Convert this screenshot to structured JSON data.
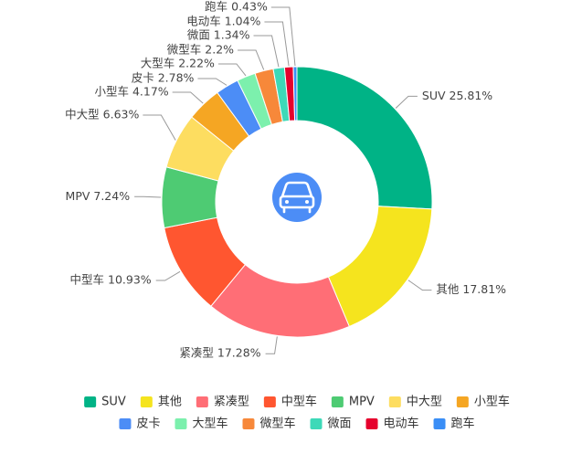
{
  "chart_data": {
    "type": "pie",
    "style": "donut",
    "center_icon": "car-icon",
    "legend_position": "bottom",
    "slices": [
      {
        "name": "SUV",
        "value": 25.81,
        "label": "SUV 25.81%",
        "color": "#00b386"
      },
      {
        "name": "其他",
        "value": 17.81,
        "label": "其他 17.81%",
        "color": "#f5e41e"
      },
      {
        "name": "紧凑型",
        "value": 17.28,
        "label": "紧凑型 17.28%",
        "color": "#ff6e76"
      },
      {
        "name": "中型车",
        "value": 10.93,
        "label": "中型车 10.93%",
        "color": "#ff5630"
      },
      {
        "name": "MPV",
        "value": 7.24,
        "label": "MPV 7.24%",
        "color": "#4ecb73"
      },
      {
        "name": "中大型",
        "value": 6.63,
        "label": "中大型 6.63%",
        "color": "#fddd60"
      },
      {
        "name": "小型车",
        "value": 4.17,
        "label": "小型车 4.17%",
        "color": "#f5a623"
      },
      {
        "name": "皮卡",
        "value": 2.78,
        "label": "皮卡 2.78%",
        "color": "#4c8df6"
      },
      {
        "name": "大型车",
        "value": 2.22,
        "label": "大型车 2.22%",
        "color": "#7cf0ad"
      },
      {
        "name": "微型车",
        "value": 2.2,
        "label": "微型车 2.2%",
        "color": "#f7883a"
      },
      {
        "name": "微面",
        "value": 1.34,
        "label": "微面 1.34%",
        "color": "#3dd9b8"
      },
      {
        "name": "电动车",
        "value": 1.04,
        "label": "电动车 1.04%",
        "color": "#e6002d"
      },
      {
        "name": "跑车",
        "value": 0.43,
        "label": "跑车 0.43%",
        "color": "#3a8ef6"
      }
    ]
  }
}
